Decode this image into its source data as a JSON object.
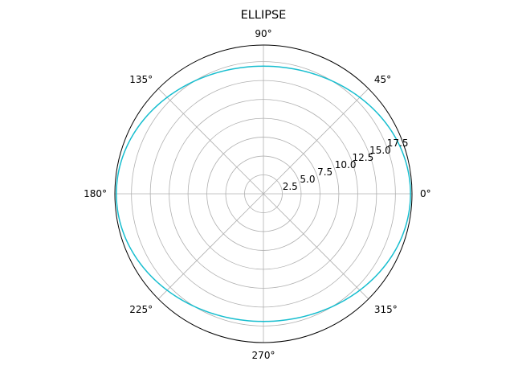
{
  "chart_data": {
    "type": "line",
    "projection": "polar",
    "title": "ELLIPSE",
    "angle_ticks": [
      "0°",
      "45°",
      "90°",
      "135°",
      "180°",
      "225°",
      "270°",
      "315°"
    ],
    "angle_tick_values": [
      0,
      45,
      90,
      135,
      180,
      225,
      270,
      315
    ],
    "radial_ticks": [
      "2.5",
      "5.0",
      "7.5",
      "10.0",
      "12.5",
      "15.0",
      "17.5"
    ],
    "radial_tick_values": [
      2.5,
      5.0,
      7.5,
      10.0,
      12.5,
      15.0,
      17.5
    ],
    "rlim": [
      0,
      19.7
    ],
    "radial_label_angle": 22.5,
    "grid": true,
    "series": [
      {
        "color": "#17becf",
        "curve": "ellipse",
        "semi_axis_x": 19.5,
        "semi_axis_y": 16.9
      }
    ]
  }
}
